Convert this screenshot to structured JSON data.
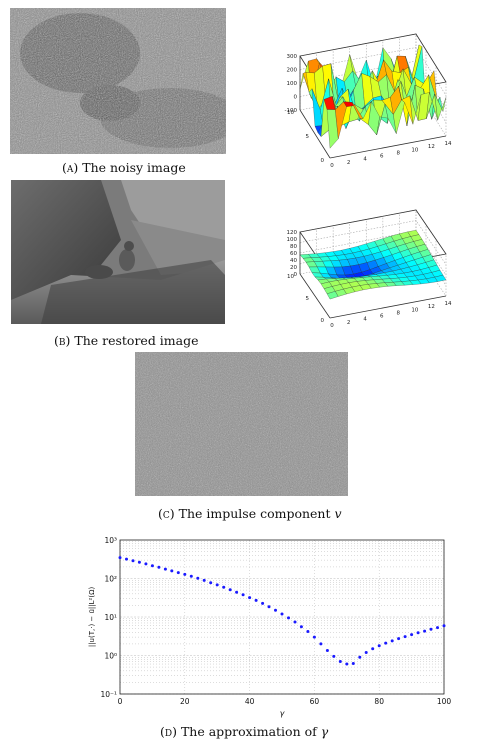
{
  "panels": {
    "a": {
      "label": "(a)",
      "caption": "The noisy image"
    },
    "b": {
      "label": "(b)",
      "caption": "The restored image"
    },
    "c": {
      "label": "(c)",
      "caption": "The impulse component",
      "symbol": "v"
    },
    "d": {
      "label": "(d)",
      "caption": "The approximation of",
      "symbol": "γ"
    }
  },
  "surf_a": {
    "z_ticks": [
      "300",
      "200",
      "100",
      "0",
      "-100"
    ],
    "y_ticks": [
      "10",
      "5",
      "0"
    ],
    "x_ticks": [
      "0",
      "2",
      "4",
      "6",
      "8",
      "10",
      "12",
      "14"
    ]
  },
  "surf_b": {
    "z_ticks": [
      "120",
      "100",
      "80",
      "60",
      "40",
      "20",
      "0"
    ],
    "y_ticks": [
      "10",
      "5",
      "0"
    ],
    "x_ticks": [
      "0",
      "2",
      "4",
      "6",
      "8",
      "10",
      "12",
      "14"
    ]
  },
  "chart_data": {
    "type": "scatter",
    "xlabel": "γ",
    "ylabel": "||u(T,·) − ū||L²(Ω)",
    "xlim": [
      0,
      100
    ],
    "ylim": [
      0.1,
      1000
    ],
    "yscale": "log",
    "grid": true,
    "marker_color": "#1a1aff",
    "x_ticks": [
      "0",
      "20",
      "40",
      "60",
      "80",
      "100"
    ],
    "y_ticks": [
      "10⁻¹",
      "10⁰",
      "10¹",
      "10²",
      "10³"
    ],
    "x": [
      0,
      2,
      4,
      6,
      8,
      10,
      12,
      14,
      16,
      18,
      20,
      22,
      24,
      26,
      28,
      30,
      32,
      34,
      36,
      38,
      40,
      42,
      44,
      46,
      48,
      50,
      52,
      54,
      56,
      58,
      60,
      62,
      64,
      66,
      68,
      70,
      72,
      74,
      76,
      78,
      80,
      82,
      84,
      86,
      88,
      90,
      92,
      94,
      96,
      98,
      100
    ],
    "y": [
      350,
      320,
      290,
      265,
      240,
      215,
      195,
      175,
      158,
      142,
      128,
      114,
      101,
      89,
      78,
      68,
      59,
      51,
      44,
      38,
      32,
      27,
      22.5,
      18.5,
      15,
      12,
      9.5,
      7.4,
      5.6,
      4.2,
      3.0,
      2.0,
      1.35,
      0.95,
      0.7,
      0.6,
      0.62,
      0.9,
      1.2,
      1.5,
      1.8,
      2.1,
      2.4,
      2.75,
      3.1,
      3.5,
      3.9,
      4.3,
      4.8,
      5.3,
      5.9
    ]
  }
}
